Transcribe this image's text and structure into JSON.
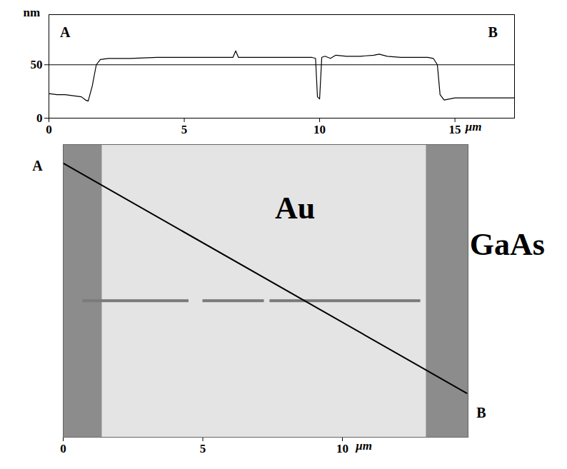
{
  "chart_data": [
    {
      "type": "line",
      "ylabel": "nm",
      "xlabel": "μm",
      "x": [
        0,
        0.3,
        0.6,
        0.9,
        1.2,
        1.35,
        1.45,
        1.6,
        1.75,
        1.9,
        2.2,
        3,
        4,
        5,
        6,
        6.8,
        6.9,
        7.0,
        8,
        9,
        9.7,
        9.85,
        9.92,
        10.0,
        10.08,
        10.2,
        10.4,
        10.6,
        11,
        11.5,
        12,
        12.2,
        12.5,
        13,
        13.5,
        14,
        14.2,
        14.35,
        14.45,
        14.6,
        15,
        15.5,
        16,
        16.5,
        17.2
      ],
      "values": [
        23,
        22,
        22,
        21,
        20,
        17,
        16,
        30,
        50,
        55,
        56,
        56,
        57,
        57,
        57,
        57,
        63,
        57,
        57,
        57,
        57,
        56,
        20,
        18,
        57,
        58,
        56,
        59,
        58,
        58,
        59,
        60,
        58,
        57,
        57,
        57,
        56,
        50,
        22,
        17,
        19,
        19,
        19,
        19,
        19
      ],
      "color": "#000000",
      "xlim": [
        0,
        17.2
      ],
      "ylim": [
        0,
        97
      ],
      "xticks": [
        0,
        5,
        10,
        15
      ],
      "yticks": [
        0,
        50
      ],
      "reference_y": 50,
      "annotations": [
        {
          "text": "A",
          "x": 0.6,
          "y": 80
        },
        {
          "text": "B",
          "x": 16.4,
          "y": 80
        }
      ]
    },
    {
      "type": "image",
      "xlabel": "μm",
      "xlim": [
        0,
        14.5
      ],
      "ylim": [
        0,
        10.5
      ],
      "xticks": [
        0,
        5,
        10
      ],
      "tick_labels": "x",
      "regions": [
        {
          "x1": 0,
          "x2": 1.4,
          "color": "#8c8c8c"
        },
        {
          "x1": 1.4,
          "x2": 13.0,
          "color": "#e4e4e4"
        },
        {
          "x1": 13.0,
          "x2": 14.5,
          "color": "#8c8c8c"
        }
      ],
      "scratch": {
        "y": 4.9,
        "color": "#7a7a7a",
        "segments": [
          [
            0.7,
            4.5
          ],
          [
            5.0,
            7.2
          ],
          [
            7.4,
            12.8
          ]
        ]
      },
      "line": {
        "x": [
          0,
          14.45
        ],
        "y": [
          9.83,
          1.58
        ],
        "color": "#000000"
      },
      "annotations": [
        {
          "text": "Au",
          "x": 8.3,
          "y": 8.2
        },
        {
          "text": "GaAs",
          "x": 15.9,
          "y": 6.9
        },
        {
          "text": "A",
          "x": -0.92,
          "y": 9.73
        },
        {
          "text": "B",
          "x": 14.97,
          "y": 0.88
        }
      ]
    }
  ]
}
